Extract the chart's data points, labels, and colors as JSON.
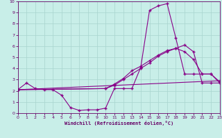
{
  "xlabel": "Windchill (Refroidissement éolien,°C)",
  "bg_color": "#c8eee8",
  "grid_color": "#a8d4ce",
  "line_color": "#880088",
  "spine_color": "#660066",
  "tick_color": "#660066",
  "xlim": [
    0,
    23
  ],
  "ylim": [
    0,
    10
  ],
  "xticks": [
    0,
    1,
    2,
    3,
    4,
    5,
    6,
    7,
    8,
    9,
    10,
    11,
    12,
    13,
    14,
    15,
    16,
    17,
    18,
    19,
    20,
    21,
    22,
    23
  ],
  "yticks": [
    0,
    1,
    2,
    3,
    4,
    5,
    6,
    7,
    8,
    9,
    10
  ],
  "line1_x": [
    0,
    1,
    2,
    3,
    4,
    5,
    6,
    7,
    8,
    9,
    10,
    11,
    12,
    13,
    14,
    15,
    16,
    17,
    18,
    19,
    20,
    21,
    22,
    23
  ],
  "line1_y": [
    2.1,
    2.7,
    2.2,
    2.1,
    2.1,
    1.6,
    0.5,
    0.25,
    0.3,
    0.3,
    0.45,
    2.2,
    2.2,
    2.2,
    4.1,
    9.2,
    9.6,
    9.8,
    6.7,
    3.5,
    3.5,
    3.5,
    3.5,
    2.7
  ],
  "line2_x": [
    0,
    23
  ],
  "line2_y": [
    2.1,
    2.9
  ],
  "line3_x": [
    0,
    10,
    11,
    12,
    13,
    14,
    15,
    16,
    17,
    18,
    19,
    20,
    21,
    22,
    23
  ],
  "line3_y": [
    2.1,
    2.2,
    2.6,
    3.1,
    3.8,
    4.2,
    4.7,
    5.2,
    5.6,
    5.8,
    5.5,
    4.8,
    3.5,
    3.5,
    2.8
  ],
  "line4_x": [
    0,
    10,
    11,
    12,
    13,
    14,
    15,
    16,
    17,
    18,
    19,
    20,
    21,
    22,
    23
  ],
  "line4_y": [
    2.1,
    2.2,
    2.5,
    3.0,
    3.5,
    4.0,
    4.5,
    5.1,
    5.5,
    5.8,
    6.1,
    5.5,
    2.7,
    2.7,
    2.7
  ]
}
